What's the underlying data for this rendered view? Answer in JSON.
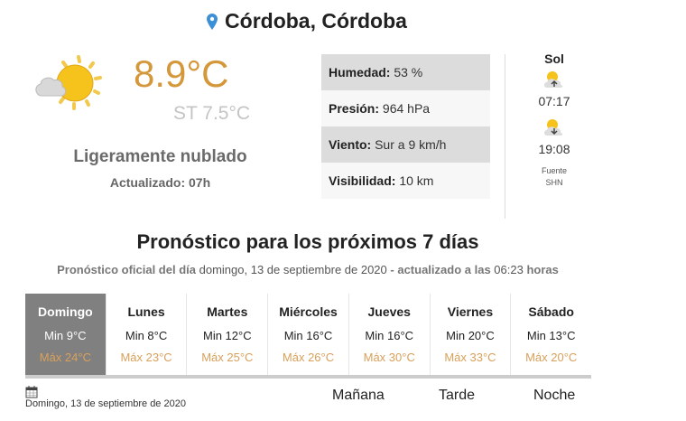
{
  "location": {
    "title": "Córdoba, Córdoba",
    "icon": "map-pin-icon"
  },
  "current": {
    "icon": "partly-cloudy-icon",
    "temperature": "8.9°C",
    "feels_like": "ST 7.5°C",
    "condition": "Ligeramente nublado",
    "updated": "Actualizado: 07h"
  },
  "details": [
    {
      "label": "Humedad:",
      "value": "53 %"
    },
    {
      "label": "Presión:",
      "value": "964 hPa"
    },
    {
      "label": "Viento:",
      "value": "Sur a 9 km/h"
    },
    {
      "label": "Visibilidad:",
      "value": "10 km"
    }
  ],
  "sun": {
    "title": "Sol",
    "sunrise": "07:17",
    "sunset": "19:08",
    "source1": "Fuente",
    "source2": "SHN"
  },
  "forecast": {
    "heading": "Pronóstico para los próximos 7 días",
    "sub_prefix": "Pronóstico oficial del día",
    "sub_date": "domingo, 13 de septiembre de 2020",
    "sub_mid": "- actualizado a las",
    "sub_time": "06:23",
    "sub_suffix": "horas",
    "days": [
      {
        "name": "Domingo",
        "min": "Min 9°C",
        "max": "Máx 24°C",
        "selected": true
      },
      {
        "name": "Lunes",
        "min": "Min 8°C",
        "max": "Máx 23°C"
      },
      {
        "name": "Martes",
        "min": "Min 12°C",
        "max": "Máx 25°C"
      },
      {
        "name": "Miércoles",
        "min": "Min 16°C",
        "max": "Máx 26°C"
      },
      {
        "name": "Jueves",
        "min": "Min 16°C",
        "max": "Máx 30°C"
      },
      {
        "name": "Viernes",
        "min": "Min 20°C",
        "max": "Máx 33°C"
      },
      {
        "name": "Sábado",
        "min": "Min 13°C",
        "max": "Máx 20°C"
      }
    ],
    "selected_date": "Domingo, 13 de septiembre de 2020",
    "periods": [
      "Mañana",
      "Tarde",
      "Noche"
    ]
  },
  "colors": {
    "temperature": "#d4973a",
    "max": "#d9a05a",
    "selected_day": "#808080",
    "pin": "#3b8fd6"
  }
}
